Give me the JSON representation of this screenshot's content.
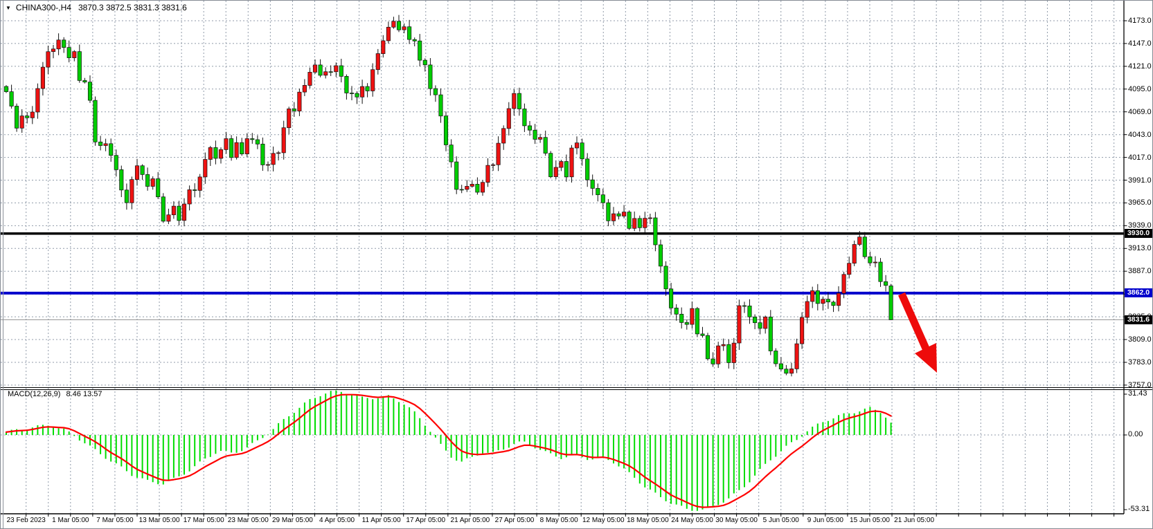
{
  "window": {
    "symbol_dropdown_icon": "▼",
    "title_symbol": "CHINA300-,H4",
    "title_ohlc": "3870.3 3872.5 3831.3 3831.6"
  },
  "colors": {
    "bull_candle": "#ee1212",
    "bear_candle": "#00cd00",
    "candle_outline": "#111111",
    "macd_histogram": "#00dd00",
    "macd_signal": "#ff0000",
    "resistance_line": "#000000",
    "support_line": "#0000cc",
    "grid": "#8f9aa8",
    "axis": "#000000",
    "background": "#ffffff",
    "arrow": "#ee0b0b",
    "last_price_line": "#909090"
  },
  "price_axis": {
    "min": 3757,
    "max": 4173,
    "step": 26,
    "labels": [
      "4173.0",
      "4147.0",
      "4121.0",
      "4095.0",
      "4069.0",
      "4043.0",
      "4017.0",
      "3991.0",
      "3965.0",
      "3939.0",
      "3913.0",
      "3887.0",
      "3861.0",
      "3835.0",
      "3809.0",
      "3783.0",
      "3757.0"
    ]
  },
  "time_axis": {
    "labels": [
      "23 Feb 2023",
      "1 Mar 05:00",
      "7 Mar 05:00",
      "13 Mar 05:00",
      "17 Mar 05:00",
      "23 Mar 05:00",
      "29 Mar 05:00",
      "4 Apr 05:00",
      "11 Apr 05:00",
      "17 Apr 05:00",
      "21 Apr 05:00",
      "27 Apr 05:00",
      "8 May 05:00",
      "12 May 05:00",
      "18 May 05:00",
      "24 May 05:00",
      "30 May 05:00",
      "5 Jun 05:00",
      "9 Jun 05:00",
      "15 Jun 05:00",
      "21 Jun 05:00"
    ]
  },
  "levels": {
    "resistance": {
      "value": 3930.0,
      "label": "3930.0"
    },
    "support": {
      "value": 3862.0,
      "label": "3862.0"
    },
    "last_price": {
      "value": 3831.6,
      "label": "3831.6"
    }
  },
  "macd_panel": {
    "indicator_label": "MACD(12,26,9)",
    "values_label": "8.46 13.57",
    "scale_max_label": "31.43",
    "scale_zero_label": "0.00",
    "scale_min_label": "-53.31",
    "scale_max": 31.43,
    "scale_min": -53.31
  },
  "annotation": {
    "arrow_direction": "down-right"
  },
  "chart_data": [
    {
      "type": "candlestick",
      "symbol": "CHINA300-",
      "timeframe": "H4",
      "ylim": [
        3757,
        4173
      ],
      "y_tick_step": 26,
      "candle_count": 170,
      "last_candle_ohlc": [
        3870.3,
        3872.5,
        3831.3,
        3831.6
      ],
      "horizontal_lines": [
        {
          "value": 3930.0,
          "color": "#000000",
          "width": 3.5
        },
        {
          "value": 3862.0,
          "color": "#0000cc",
          "width": 4
        }
      ],
      "x_labels": [
        "23 Feb 2023",
        "1 Mar 05:00",
        "7 Mar 05:00",
        "13 Mar 05:00",
        "17 Mar 05:00",
        "23 Mar 05:00",
        "29 Mar 05:00",
        "4 Apr 05:00",
        "11 Apr 05:00",
        "17 Apr 05:00",
        "21 Apr 05:00",
        "27 Apr 05:00",
        "8 May 05:00",
        "12 May 05:00",
        "18 May 05:00",
        "24 May 05:00",
        "30 May 05:00",
        "5 Jun 05:00",
        "9 Jun 05:00",
        "15 Jun 05:00",
        "21 Jun 05:00"
      ],
      "close_path": [
        [
          8,
          4092
        ],
        [
          18,
          4066
        ],
        [
          25,
          4045
        ],
        [
          33,
          4070
        ],
        [
          40,
          4058
        ],
        [
          48,
          4078
        ],
        [
          55,
          4102
        ],
        [
          63,
          4126
        ],
        [
          70,
          4143
        ],
        [
          78,
          4136
        ],
        [
          85,
          4152
        ],
        [
          92,
          4143
        ],
        [
          98,
          4128
        ],
        [
          105,
          4146
        ],
        [
          112,
          4110
        ],
        [
          120,
          4102
        ],
        [
          127,
          4098
        ],
        [
          133,
          4047
        ],
        [
          140,
          4022
        ],
        [
          148,
          4032
        ],
        [
          155,
          4035
        ],
        [
          163,
          4010
        ],
        [
          170,
          3996
        ],
        [
          178,
          3970
        ],
        [
          185,
          3962
        ],
        [
          192,
          4003
        ],
        [
          200,
          4010
        ],
        [
          207,
          3990
        ],
        [
          214,
          3980
        ],
        [
          221,
          4000
        ],
        [
          228,
          3970
        ],
        [
          235,
          3942
        ],
        [
          242,
          3952
        ],
        [
          249,
          3962
        ],
        [
          256,
          3938
        ],
        [
          263,
          3958
        ],
        [
          270,
          3985
        ],
        [
          277,
          3972
        ],
        [
          284,
          3990
        ],
        [
          291,
          4005
        ],
        [
          298,
          4018
        ],
        [
          305,
          4030
        ],
        [
          312,
          4012
        ],
        [
          319,
          4025
        ],
        [
          326,
          4040
        ],
        [
          333,
          4020
        ],
        [
          340,
          4035
        ],
        [
          347,
          4018
        ],
        [
          354,
          4042
        ],
        [
          361,
          4030
        ],
        [
          368,
          4040
        ],
        [
          375,
          4020
        ],
        [
          382,
          3998
        ],
        [
          389,
          4015
        ],
        [
          396,
          4030
        ],
        [
          403,
          4022
        ],
        [
          410,
          4055
        ],
        [
          417,
          4075
        ],
        [
          424,
          4068
        ],
        [
          431,
          4088
        ],
        [
          438,
          4100
        ],
        [
          445,
          4112
        ],
        [
          452,
          4128
        ],
        [
          459,
          4110
        ],
        [
          466,
          4120
        ],
        [
          473,
          4105
        ],
        [
          480,
          4118
        ],
        [
          487,
          4125
        ],
        [
          494,
          4100
        ],
        [
          501,
          4088
        ],
        [
          508,
          4095
        ],
        [
          515,
          4085
        ],
        [
          522,
          4098
        ],
        [
          529,
          4092
        ],
        [
          536,
          4110
        ],
        [
          543,
          4130
        ],
        [
          550,
          4148
        ],
        [
          557,
          4160
        ],
        [
          564,
          4172
        ],
        [
          571,
          4178
        ],
        [
          578,
          4155
        ],
        [
          585,
          4168
        ],
        [
          592,
          4145
        ],
        [
          599,
          4150
        ],
        [
          606,
          4122
        ],
        [
          613,
          4125
        ],
        [
          620,
          4098
        ],
        [
          627,
          4090
        ],
        [
          634,
          4075
        ],
        [
          641,
          4035
        ],
        [
          648,
          4018
        ],
        [
          655,
          3992
        ],
        [
          662,
          3968
        ],
        [
          669,
          3990
        ],
        [
          676,
          3980
        ],
        [
          683,
          3995
        ],
        [
          690,
          3972
        ],
        [
          697,
          3990
        ],
        [
          704,
          4010
        ],
        [
          711,
          4005
        ],
        [
          718,
          4030
        ],
        [
          725,
          4050
        ],
        [
          732,
          4065
        ],
        [
          739,
          4095
        ],
        [
          746,
          4085
        ],
        [
          753,
          4060
        ],
        [
          760,
          4040
        ],
        [
          767,
          4052
        ],
        [
          774,
          4030
        ],
        [
          781,
          4040
        ],
        [
          788,
          4020
        ],
        [
          795,
          3995
        ],
        [
          802,
          4005
        ],
        [
          809,
          4015
        ],
        [
          816,
          3990
        ],
        [
          823,
          4020
        ],
        [
          830,
          4038
        ],
        [
          837,
          4025
        ],
        [
          844,
          4000
        ],
        [
          851,
          3980
        ],
        [
          858,
          3990
        ],
        [
          865,
          3965
        ],
        [
          872,
          3962
        ],
        [
          879,
          3940
        ],
        [
          886,
          3952
        ],
        [
          893,
          3948
        ],
        [
          900,
          3958
        ],
        [
          907,
          3935
        ],
        [
          914,
          3950
        ],
        [
          921,
          3938
        ],
        [
          928,
          3942
        ],
        [
          935,
          3950
        ],
        [
          942,
          3940
        ],
        [
          949,
          3895
        ],
        [
          956,
          3888
        ],
        [
          963,
          3858
        ],
        [
          970,
          3845
        ],
        [
          977,
          3835
        ],
        [
          984,
          3828
        ],
        [
          991,
          3826
        ],
        [
          998,
          3842
        ],
        [
          1005,
          3815
        ],
        [
          1012,
          3822
        ],
        [
          1019,
          3790
        ],
        [
          1026,
          3778
        ],
        [
          1033,
          3795
        ],
        [
          1040,
          3812
        ],
        [
          1047,
          3790
        ],
        [
          1054,
          3778
        ],
        [
          1061,
          3815
        ],
        [
          1068,
          3855
        ],
        [
          1075,
          3850
        ],
        [
          1082,
          3835
        ],
        [
          1089,
          3828
        ],
        [
          1096,
          3822
        ],
        [
          1103,
          3840
        ],
        [
          1110,
          3795
        ],
        [
          1117,
          3788
        ],
        [
          1124,
          3772
        ],
        [
          1131,
          3778
        ],
        [
          1138,
          3765
        ],
        [
          1145,
          3790
        ],
        [
          1152,
          3810
        ],
        [
          1159,
          3842
        ],
        [
          1166,
          3855
        ],
        [
          1173,
          3862
        ],
        [
          1180,
          3850
        ],
        [
          1187,
          3858
        ],
        [
          1194,
          3852
        ],
        [
          1201,
          3848
        ],
        [
          1208,
          3858
        ],
        [
          1215,
          3875
        ],
        [
          1222,
          3888
        ],
        [
          1229,
          3905
        ],
        [
          1236,
          3928
        ],
        [
          1243,
          3922
        ],
        [
          1250,
          3900
        ],
        [
          1257,
          3898
        ],
        [
          1264,
          3896
        ],
        [
          1271,
          3875
        ],
        [
          1279,
          3870.3
        ],
        [
          1286,
          3831.6
        ]
      ]
    },
    {
      "type": "bar",
      "name": "MACD histogram with signal line",
      "params": "12,26,9",
      "last_macd": 8.46,
      "last_signal": 13.57,
      "ylim": [
        -53.31,
        31.43
      ],
      "signal_alpha": 0.28,
      "histogram_path": [
        [
          8,
          2
        ],
        [
          40,
          5
        ],
        [
          70,
          7
        ],
        [
          90,
          4
        ],
        [
          105,
          0
        ],
        [
          120,
          -5
        ],
        [
          140,
          -12
        ],
        [
          165,
          -20
        ],
        [
          190,
          -28
        ],
        [
          215,
          -33
        ],
        [
          235,
          -34
        ],
        [
          255,
          -30
        ],
        [
          275,
          -24
        ],
        [
          295,
          -17
        ],
        [
          315,
          -11
        ],
        [
          335,
          -13
        ],
        [
          355,
          -9
        ],
        [
          372,
          -4
        ],
        [
          388,
          2
        ],
        [
          405,
          9
        ],
        [
          425,
          17
        ],
        [
          445,
          24
        ],
        [
          465,
          29
        ],
        [
          485,
          31
        ],
        [
          505,
          29
        ],
        [
          520,
          26
        ],
        [
          540,
          26
        ],
        [
          560,
          27
        ],
        [
          580,
          23
        ],
        [
          595,
          17
        ],
        [
          610,
          9
        ],
        [
          622,
          2
        ],
        [
          635,
          -7
        ],
        [
          650,
          -15
        ],
        [
          665,
          -19
        ],
        [
          680,
          -16
        ],
        [
          695,
          -12
        ],
        [
          710,
          -13
        ],
        [
          725,
          -10
        ],
        [
          742,
          -6
        ],
        [
          755,
          -5
        ],
        [
          770,
          -8
        ],
        [
          790,
          -13
        ],
        [
          810,
          -16
        ],
        [
          830,
          -14
        ],
        [
          850,
          -17
        ],
        [
          870,
          -16
        ],
        [
          885,
          -19
        ],
        [
          900,
          -24
        ],
        [
          915,
          -30
        ],
        [
          930,
          -36
        ],
        [
          950,
          -43
        ],
        [
          970,
          -48
        ],
        [
          990,
          -52
        ],
        [
          1010,
          -53
        ],
        [
          1030,
          -50
        ],
        [
          1050,
          -45
        ],
        [
          1070,
          -38
        ],
        [
          1090,
          -28
        ],
        [
          1110,
          -18
        ],
        [
          1130,
          -10
        ],
        [
          1150,
          -3
        ],
        [
          1165,
          3
        ],
        [
          1190,
          10
        ],
        [
          1215,
          14
        ],
        [
          1240,
          17
        ],
        [
          1258,
          19
        ],
        [
          1272,
          15
        ],
        [
          1286,
          8.46
        ]
      ]
    }
  ]
}
